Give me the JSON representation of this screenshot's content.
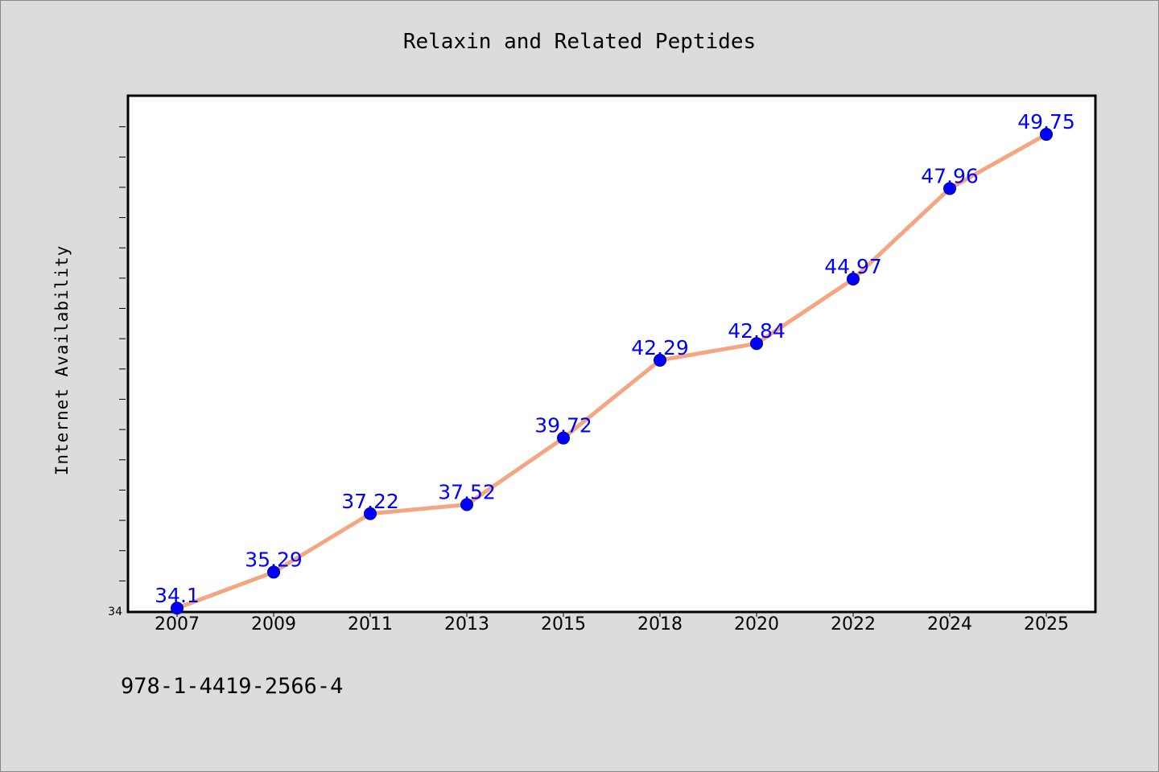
{
  "chart_data": {
    "type": "line",
    "title": "Relaxin and Related Peptides",
    "xlabel": "",
    "ylabel": "Internet Availability",
    "categories": [
      "2007",
      "2009",
      "2011",
      "2013",
      "2015",
      "2018",
      "2020",
      "2022",
      "2024",
      "2025"
    ],
    "series": [
      {
        "values": [
          34.1,
          35.29,
          37.22,
          37.52,
          39.72,
          42.29,
          42.84,
          44.97,
          47.96,
          49.75
        ],
        "labels": [
          "34.1",
          "35.29",
          "37.22",
          "37.52",
          "39.72",
          "42.29",
          "42.84",
          "44.97",
          "47.96",
          "49.75"
        ],
        "line_color": "#f4a582",
        "marker_color": "#0000ff"
      }
    ],
    "yticks": [
      "34"
    ],
    "ylim": [
      34,
      51
    ],
    "grid": false,
    "legend": "none"
  },
  "footnote": "978-1-4419-2566-4",
  "colors": {
    "background": "#dcdcdc",
    "plot_background": "#ffffff",
    "line": "#f4a582",
    "marker": "#0000ff",
    "data_label": "#0000ff"
  }
}
